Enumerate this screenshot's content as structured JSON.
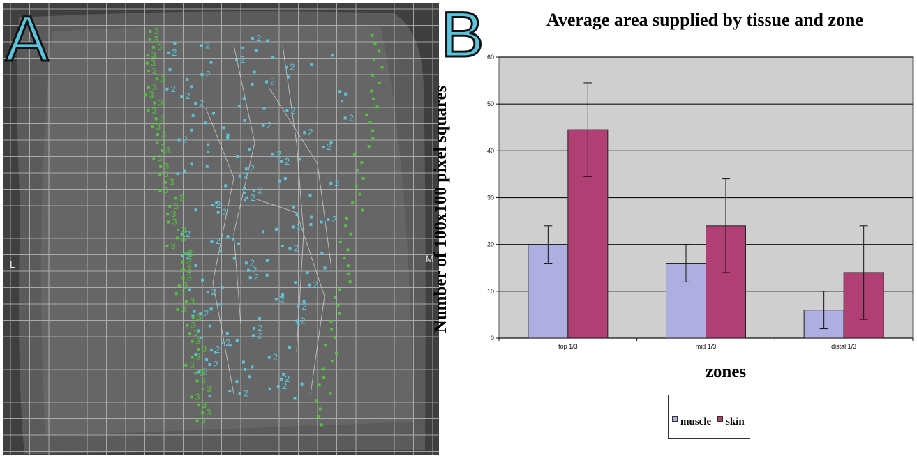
{
  "panel_a": {
    "letter": "A",
    "left_mark": "L",
    "right_mark": "M",
    "zone_labels": [
      "2",
      "3"
    ]
  },
  "panel_b": {
    "letter": "B"
  },
  "colors": {
    "muscle": "#aeaee0",
    "skin": "#b03f74",
    "plot_bg": "#cfcfcf",
    "zone2_dot": "#5bc4dd",
    "zone3_dot": "#52c43c"
  },
  "chart_data": {
    "type": "bar",
    "title": "Average area supplied by tissue and zone",
    "xlabel": "zones",
    "ylabel": "Number of 100x100 pixel squares",
    "categories": [
      "top 1/3",
      "mid 1/3",
      "distal 1/3"
    ],
    "series": [
      {
        "name": "muscle",
        "values": [
          20,
          16,
          6
        ],
        "error": [
          4,
          4,
          4
        ]
      },
      {
        "name": "skin",
        "values": [
          44.5,
          24,
          14
        ],
        "error": [
          10,
          10,
          10
        ]
      }
    ],
    "ylim": [
      0,
      60
    ],
    "yticks": [
      0,
      10,
      20,
      30,
      40,
      50,
      60
    ],
    "grid": true,
    "legend_position": "bottom"
  }
}
